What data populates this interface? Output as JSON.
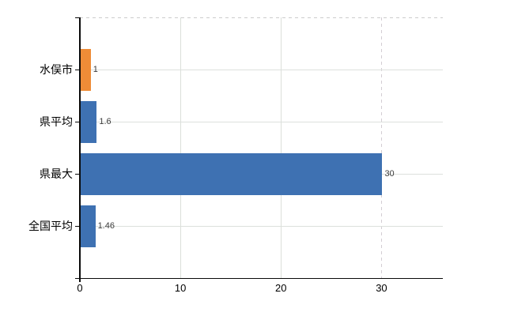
{
  "chart_data": {
    "type": "bar",
    "orientation": "horizontal",
    "title": "",
    "xlabel": "",
    "ylabel": "",
    "categories": [
      "水俣市",
      "県平均",
      "県最大",
      "全国平均"
    ],
    "values": [
      1,
      1.6,
      30,
      1.46
    ],
    "value_labels": [
      "1",
      "1.6",
      "30",
      "1.46"
    ],
    "bar_colors": [
      "#EE8C37",
      "#3E71B2",
      "#3E71B2",
      "#3E71B2"
    ],
    "x_ticks": [
      0,
      10,
      20,
      30
    ],
    "x_tick_labels": [
      "0",
      "10",
      "20",
      "30"
    ],
    "dashed_gridline_ticks": [
      30
    ],
    "xlim": [
      0,
      36.1
    ],
    "grid": {
      "vertical_gridlines": true,
      "horizontal_category_lines": true,
      "top_border_dashed": true
    },
    "legend": "none"
  },
  "style": {
    "background": "#FFFFFF",
    "accent_orange": "#EE8C37",
    "accent_blue": "#3E71B2",
    "gridline_color": "#DBDFDA",
    "dashed_line_color": "#D3CDD3",
    "axis_color": "#0A0A0A",
    "value_label_color": "#3C3C3C",
    "category_label_color": "#000000"
  }
}
